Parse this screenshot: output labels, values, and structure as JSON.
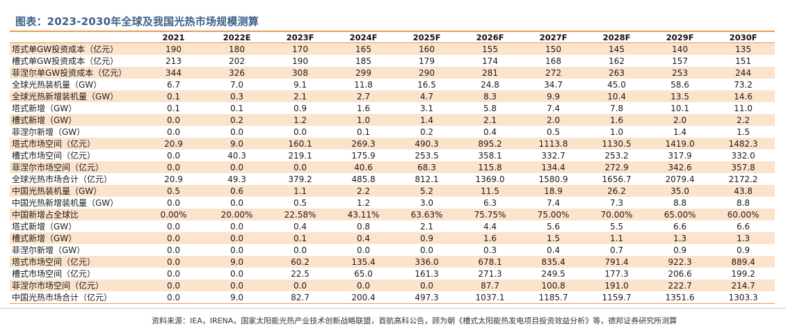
{
  "title": "图表：2023-2030年全球及我国光热市场规模测算",
  "table": {
    "headers": [
      "",
      "2021",
      "2022E",
      "2023F",
      "2024F",
      "2025F",
      "2026F",
      "2027F",
      "2028F",
      "2029F",
      "2030F"
    ],
    "rows": [
      {
        "label": "塔式单GW投资成本（亿元）",
        "values": [
          "190",
          "180",
          "170",
          "165",
          "160",
          "155",
          "150",
          "145",
          "140",
          "135"
        ]
      },
      {
        "label": "槽式单GW投资成本（亿元）",
        "values": [
          "213",
          "202",
          "190",
          "185",
          "179",
          "174",
          "168",
          "162",
          "157",
          "151"
        ]
      },
      {
        "label": "菲涅尔单GW投资成本（亿元）",
        "values": [
          "344",
          "326",
          "308",
          "299",
          "290",
          "281",
          "272",
          "263",
          "253",
          "244"
        ]
      },
      {
        "label": "全球光热装机量（GW）",
        "values": [
          "6.7",
          "7.0",
          "9.1",
          "11.8",
          "16.5",
          "24.8",
          "34.7",
          "45.0",
          "58.6",
          "73.2"
        ]
      },
      {
        "label": "全球光热新增装机量（GW）",
        "values": [
          "0.1",
          "0.3",
          "2.1",
          "2.7",
          "4.7",
          "8.3",
          "9.9",
          "10.4",
          "13.5",
          "14.6"
        ]
      },
      {
        "label": "塔式新增（GW）",
        "values": [
          "0.1",
          "0.1",
          "0.9",
          "1.6",
          "3.1",
          "5.8",
          "7.4",
          "7.8",
          "10.1",
          "11.0"
        ]
      },
      {
        "label": "槽式新增（GW）",
        "values": [
          "0.0",
          "0.2",
          "1.2",
          "1.0",
          "1.4",
          "2.1",
          "2.0",
          "1.6",
          "2.0",
          "2.2"
        ]
      },
      {
        "label": "菲涅尔新增（GW）",
        "values": [
          "0.0",
          "0.0",
          "0.0",
          "0.1",
          "0.2",
          "0.4",
          "0.5",
          "1.0",
          "1.4",
          "1.5"
        ]
      },
      {
        "label": "塔式市场空间（亿元）",
        "values": [
          "20.9",
          "9.0",
          "160.1",
          "269.3",
          "490.3",
          "895.2",
          "1113.8",
          "1130.5",
          "1419.0",
          "1482.3"
        ]
      },
      {
        "label": "槽式市场空间（亿元）",
        "values": [
          "0.0",
          "40.3",
          "219.1",
          "175.9",
          "253.5",
          "358.1",
          "332.7",
          "253.2",
          "317.9",
          "332.0"
        ]
      },
      {
        "label": "菲涅尔市场空间（亿元）",
        "values": [
          "0.0",
          "0.0",
          "0.0",
          "40.6",
          "68.3",
          "115.8",
          "134.4",
          "272.9",
          "342.6",
          "357.8"
        ]
      },
      {
        "label": "全球光热市场合计（亿元）",
        "values": [
          "20.9",
          "49.3",
          "379.2",
          "485.8",
          "812.1",
          "1369.0",
          "1580.9",
          "1656.7",
          "2079.4",
          "2172.2"
        ]
      },
      {
        "label": "中国光热装机量（GW）",
        "values": [
          "0.5",
          "0.6",
          "1.1",
          "2.2",
          "5.2",
          "11.5",
          "18.9",
          "26.2",
          "35.0",
          "43.8"
        ]
      },
      {
        "label": "中国光热新增装机量（GW）",
        "values": [
          "0.0",
          "0.0",
          "0.5",
          "1.2",
          "3.0",
          "6.3",
          "7.4",
          "7.3",
          "8.8",
          "8.8"
        ]
      },
      {
        "label": "中国新增占全球比",
        "values": [
          "0.00%",
          "20.00%",
          "22.58%",
          "43.11%",
          "63.63%",
          "75.75%",
          "75.00%",
          "70.00%",
          "65.00%",
          "60.00%"
        ]
      },
      {
        "label": "塔式新增（GW）",
        "values": [
          "0.0",
          "0.0",
          "0.4",
          "0.8",
          "2.1",
          "4.4",
          "5.6",
          "5.5",
          "6.6",
          "6.6"
        ]
      },
      {
        "label": "槽式新增（GW）",
        "values": [
          "0.0",
          "0.0",
          "0.1",
          "0.4",
          "0.9",
          "1.6",
          "1.5",
          "1.1",
          "1.3",
          "1.3"
        ]
      },
      {
        "label": "菲涅尔新增（GW）",
        "values": [
          "0.0",
          "0.0",
          "0.0",
          "0.0",
          "0.0",
          "0.3",
          "0.4",
          "0.7",
          "0.9",
          "0.9"
        ]
      },
      {
        "label": "塔式市场空间（亿元）",
        "values": [
          "0.0",
          "9.0",
          "60.2",
          "135.4",
          "336.0",
          "678.1",
          "835.4",
          "791.4",
          "922.3",
          "889.4"
        ]
      },
      {
        "label": "槽式市场空间（亿元）",
        "values": [
          "0.0",
          "0.0",
          "22.5",
          "65.0",
          "161.3",
          "271.3",
          "249.5",
          "177.3",
          "206.6",
          "199.2"
        ]
      },
      {
        "label": "菲涅尔市场空间（亿元）",
        "values": [
          "0.0",
          "0.0",
          "0.0",
          "0.0",
          "0.0",
          "87.7",
          "100.8",
          "191.0",
          "222.7",
          "214.7"
        ]
      },
      {
        "label": "中国光热市场合计（亿元）",
        "values": [
          "0.0",
          "9.0",
          "82.7",
          "200.4",
          "497.3",
          "1037.1",
          "1185.7",
          "1159.7",
          "1351.6",
          "1303.3"
        ]
      }
    ]
  },
  "source": "资料来源：IEA，IRENA，国家太阳能光热产业技术创新战略联盟，首航高科公告，顾为朝《槽式太阳能热发电项目投资效益分析》等，德邦证券研究所测算",
  "colors": {
    "title": "#3c5f86",
    "stripe": "#fbe3cc",
    "rule": "#e89a55"
  }
}
